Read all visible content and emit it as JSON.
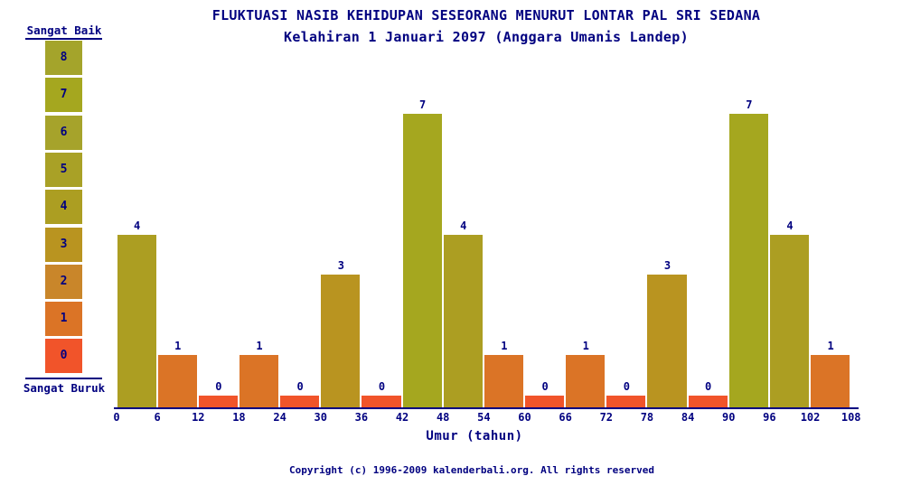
{
  "title": "FLUKTUASI NASIB KEHIDUPAN SESEORANG MENURUT LONTAR PAL SRI SEDANA",
  "subtitle": "Kelahiran 1 Januari 2097 (Anggara Umanis Landep)",
  "legend": {
    "top_label": "Sangat Baik",
    "bottom_label": "Sangat Buruk",
    "scale": [
      {
        "value": 8,
        "color": "#A4A42B"
      },
      {
        "value": 7,
        "color": "#A5A71F"
      },
      {
        "value": 6,
        "color": "#A6A32B"
      },
      {
        "value": 5,
        "color": "#A9A126"
      },
      {
        "value": 4,
        "color": "#AC9E22"
      },
      {
        "value": 3,
        "color": "#B99420"
      },
      {
        "value": 2,
        "color": "#C9862A"
      },
      {
        "value": 1,
        "color": "#DB7426"
      },
      {
        "value": 0,
        "color": "#F1542A"
      }
    ]
  },
  "chart_data": {
    "type": "bar",
    "title": "FLUKTUASI NASIB KEHIDUPAN SESEORANG MENURUT LONTAR PAL SRI SEDANA",
    "subtitle": "Kelahiran 1 Januari 2097 (Anggara Umanis Landep)",
    "xlabel": "Umur (tahun)",
    "ylabel": "",
    "x_ticks": [
      0,
      6,
      12,
      18,
      24,
      30,
      36,
      42,
      48,
      54,
      60,
      66,
      72,
      78,
      84,
      90,
      96,
      102,
      108
    ],
    "categories": [
      "0-6",
      "6-12",
      "12-18",
      "18-24",
      "24-30",
      "30-36",
      "36-42",
      "42-48",
      "48-54",
      "54-60",
      "60-66",
      "66-72",
      "72-78",
      "78-84",
      "84-90",
      "90-96",
      "96-102",
      "102-108"
    ],
    "values": [
      4,
      1,
      0,
      1,
      0,
      3,
      0,
      7,
      4,
      1,
      0,
      1,
      0,
      3,
      0,
      7,
      4,
      1
    ],
    "ylim": [
      0,
      8
    ],
    "grid": false,
    "legend_position": "left",
    "value_labels_shown": true
  },
  "footer": {
    "copyright": "Copyright (c) 1996-2009 kalenderbali.org. All rights reserved"
  },
  "colors": {
    "text": "#000080",
    "axis": "#000080",
    "background": "#FFFFFF"
  }
}
